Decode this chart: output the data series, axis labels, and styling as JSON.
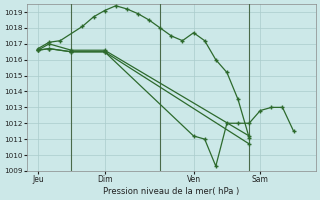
{
  "background_color": "#cce8e8",
  "grid_color": "#aacccc",
  "line_color": "#2d6a2d",
  "marker_color": "#2d6a2d",
  "xlabel": "Pression niveau de la mer( hPa )",
  "ylim": [
    1009,
    1019.5
  ],
  "yticks": [
    1009,
    1010,
    1011,
    1012,
    1013,
    1014,
    1015,
    1016,
    1017,
    1018,
    1019
  ],
  "xtick_labels": [
    "Jeu",
    "Dim",
    "Ven",
    "Sam"
  ],
  "xtick_positions": [
    0.5,
    3.5,
    7.5,
    10.5
  ],
  "vline_positions": [
    2.0,
    6.0,
    10.0
  ],
  "xlim": [
    0,
    13
  ],
  "series": [
    {
      "x": [
        0.5,
        1.0,
        1.5,
        2.5,
        3.0,
        3.5,
        4.0,
        4.5,
        5.0,
        5.5,
        6.0,
        6.5,
        7.0,
        7.5,
        8.0,
        8.5,
        9.0,
        9.5,
        10.0
      ],
      "y": [
        1016.7,
        1017.1,
        1017.2,
        1018.1,
        1018.7,
        1019.1,
        1019.4,
        1019.2,
        1018.9,
        1018.5,
        1018.0,
        1017.5,
        1017.2,
        1017.7,
        1017.2,
        1016.0,
        1015.2,
        1013.5,
        1011.1
      ]
    },
    {
      "x": [
        0.5,
        1.0,
        2.0,
        3.5,
        10.0
      ],
      "y": [
        1016.6,
        1017.0,
        1016.6,
        1016.6,
        1011.2
      ]
    },
    {
      "x": [
        0.5,
        1.0,
        2.0,
        3.5,
        10.0
      ],
      "y": [
        1016.6,
        1016.7,
        1016.5,
        1016.5,
        1010.7
      ]
    },
    {
      "x": [
        0.5,
        1.0,
        2.0,
        3.5,
        7.5,
        8.0,
        8.5,
        9.0,
        9.5,
        10.0,
        10.5,
        11.0,
        11.5,
        12.0
      ],
      "y": [
        1016.6,
        1016.7,
        1016.5,
        1016.5,
        1011.2,
        1011.0,
        1009.3,
        1012.0,
        1012.0,
        1012.0,
        1012.8,
        1013.0,
        1013.0,
        1011.5
      ]
    }
  ]
}
